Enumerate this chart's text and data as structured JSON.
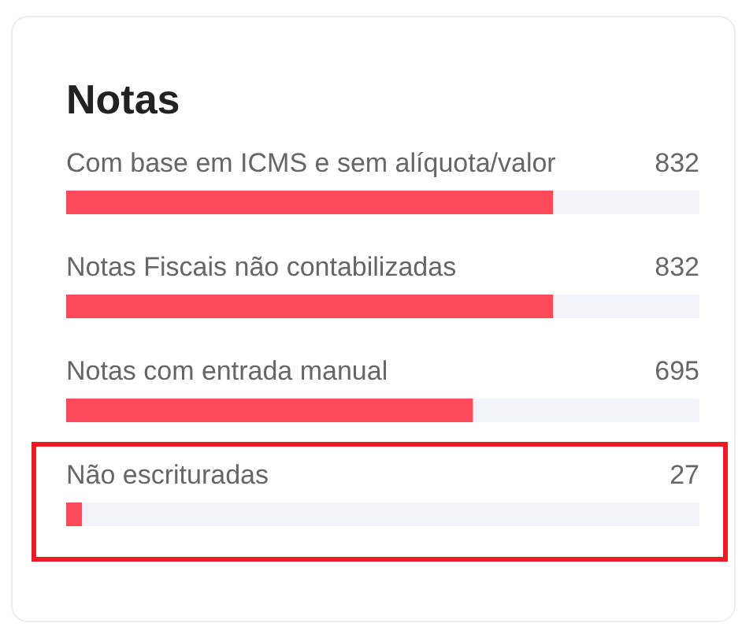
{
  "chart_data": {
    "type": "bar",
    "orientation": "horizontal",
    "title": "Notas",
    "categories": [
      "Com base em ICMS e sem alíquota/valor",
      "Notas Fiscais não contabilizadas",
      "Notas com entrada manual",
      "Não escrituradas"
    ],
    "values": [
      832,
      832,
      695,
      27
    ],
    "color": "#fc4b58",
    "xlim": [
      0,
      1082
    ],
    "data_labels": true,
    "tick_labels": "y"
  }
}
